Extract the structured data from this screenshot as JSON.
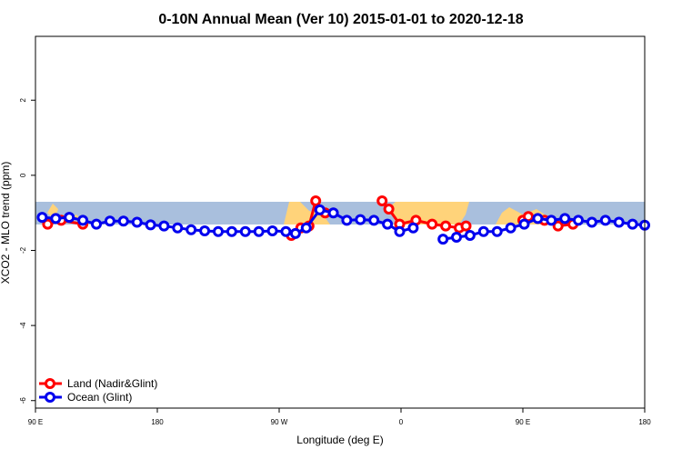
{
  "chart_data": {
    "type": "line",
    "title": "0-10N Annual Mean (Ver 10)   2015-01-01 to 2020-12-18",
    "xlabel": "Longitude (deg E)",
    "ylabel": "XCO2 - MLO trend (ppm)",
    "x_ticks": [
      {
        "value": 90,
        "label": "90 E"
      },
      {
        "value": 180,
        "label": "180"
      },
      {
        "value": 270,
        "label": "90 W"
      },
      {
        "value": 360,
        "label": "0"
      },
      {
        "value": 450,
        "label": "90 E"
      },
      {
        "value": 540,
        "label": "180"
      }
    ],
    "y_ticks": [
      {
        "value": 2,
        "label": "2"
      },
      {
        "value": 0,
        "label": "0"
      },
      {
        "value": -2,
        "label": "-2"
      },
      {
        "value": -4,
        "label": "-4"
      },
      {
        "value": -6,
        "label": "-6"
      }
    ],
    "xlim": [
      90,
      540
    ],
    "ylim": [
      -6.2,
      3.7
    ],
    "legend_position": "bottom-left",
    "colors": {
      "land": "#ff0000",
      "ocean": "#0000ee",
      "ocean_band": "#a9bfdd",
      "land_band": "#ffd37a"
    },
    "series": [
      {
        "name": "Land (Nadir&Glint)",
        "segments": [
          [
            [
              99,
              -1.3
            ],
            [
              109,
              -1.2
            ],
            [
              125,
              -1.3
            ]
          ],
          [
            [
              279,
              -1.6
            ],
            [
              286,
              -1.4
            ],
            [
              292,
              -1.35
            ],
            [
              297,
              -0.68
            ],
            [
              304,
              -1.0
            ]
          ],
          [
            [
              346,
              -0.68
            ],
            [
              351,
              -0.9
            ],
            [
              359,
              -1.3
            ],
            [
              371,
              -1.2
            ],
            [
              383,
              -1.3
            ],
            [
              393,
              -1.35
            ],
            [
              403,
              -1.4
            ],
            [
              408,
              -1.35
            ]
          ],
          [
            [
              450,
              -1.2
            ],
            [
              454,
              -1.1
            ],
            [
              466,
              -1.2
            ],
            [
              476,
              -1.35
            ],
            [
              487,
              -1.3
            ]
          ]
        ]
      },
      {
        "name": "Ocean (Glint)",
        "segments": [
          [
            [
              95,
              -1.12
            ],
            [
              105,
              -1.15
            ],
            [
              115,
              -1.12
            ],
            [
              125,
              -1.2
            ],
            [
              135,
              -1.3
            ],
            [
              145,
              -1.22
            ],
            [
              155,
              -1.22
            ],
            [
              165,
              -1.25
            ],
            [
              175,
              -1.32
            ],
            [
              185,
              -1.35
            ],
            [
              195,
              -1.4
            ],
            [
              205,
              -1.45
            ],
            [
              215,
              -1.48
            ],
            [
              225,
              -1.5
            ],
            [
              235,
              -1.5
            ],
            [
              245,
              -1.5
            ],
            [
              255,
              -1.5
            ],
            [
              265,
              -1.48
            ],
            [
              275,
              -1.5
            ],
            [
              282,
              -1.55
            ],
            [
              290,
              -1.4
            ],
            [
              300,
              -0.92
            ],
            [
              310,
              -1.0
            ],
            [
              320,
              -1.2
            ],
            [
              330,
              -1.18
            ],
            [
              340,
              -1.2
            ],
            [
              350,
              -1.3
            ],
            [
              359,
              -1.5
            ],
            [
              369,
              -1.4
            ]
          ],
          [
            [
              391,
              -1.7
            ],
            [
              401,
              -1.65
            ],
            [
              411,
              -1.6
            ],
            [
              421,
              -1.5
            ],
            [
              431,
              -1.5
            ],
            [
              441,
              -1.4
            ],
            [
              451,
              -1.3
            ],
            [
              461,
              -1.15
            ],
            [
              471,
              -1.2
            ],
            [
              481,
              -1.15
            ],
            [
              491,
              -1.2
            ],
            [
              501,
              -1.25
            ],
            [
              511,
              -1.2
            ],
            [
              521,
              -1.25
            ],
            [
              531,
              -1.3
            ],
            [
              540,
              -1.33
            ]
          ]
        ]
      }
    ]
  }
}
